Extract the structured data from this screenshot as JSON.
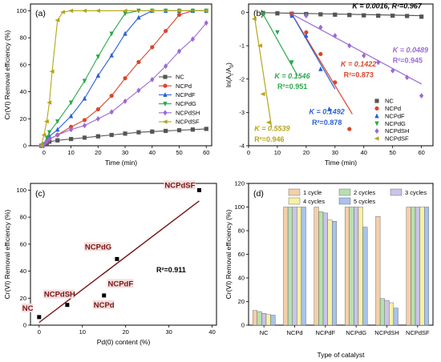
{
  "colors": {
    "NC": "#555555",
    "NCPd": "#d9452b",
    "NCPdF": "#2b5fd9",
    "NCPdG": "#2aa84a",
    "NCPdSH": "#9b6ad6",
    "NCPdSF": "#b5a51a",
    "fit_c": "#7a1414",
    "bar_1": "#f4cfa8",
    "bar_2": "#b7dfb0",
    "bar_3": "#cbc3ea",
    "bar_4": "#f6f2a5",
    "bar_5": "#a9c3ea"
  },
  "chart_data": [
    {
      "panel": "(a)",
      "type": "line",
      "xlabel": "Time (min)",
      "ylabel": "Cr(VI) Removal efficiency (%)",
      "xlim": [
        -5,
        62
      ],
      "ylim": [
        0,
        105
      ],
      "xticks": [
        "0",
        "10",
        "20",
        "30",
        "40",
        "50",
        "60"
      ],
      "yticks": [
        "0",
        "20",
        "40",
        "60",
        "80",
        "100"
      ],
      "legend": "right",
      "series": [
        {
          "name": "NC",
          "marker": "square",
          "x": [
            -1,
            0,
            1,
            2,
            5,
            10,
            15,
            20,
            25,
            30,
            35,
            40,
            45,
            50,
            55,
            60
          ],
          "y": [
            0,
            1,
            2,
            3,
            4,
            5,
            6,
            7,
            8,
            9,
            10,
            10.5,
            11,
            11.5,
            12,
            12.5
          ]
        },
        {
          "name": "NCPd",
          "marker": "circle",
          "x": [
            -1,
            0,
            1,
            2,
            5,
            10,
            15,
            20,
            25,
            30,
            35,
            40,
            45,
            50,
            55,
            60
          ],
          "y": [
            0,
            1,
            3,
            5,
            8,
            14,
            19,
            27,
            37,
            50,
            62,
            73,
            85,
            97,
            100,
            100
          ]
        },
        {
          "name": "NCPdF",
          "marker": "triangle-up",
          "x": [
            -1,
            0,
            1,
            2,
            5,
            10,
            15,
            20,
            25,
            30,
            35,
            40,
            45,
            50,
            55,
            60
          ],
          "y": [
            0,
            1,
            4,
            7,
            12,
            22,
            35,
            52,
            67,
            83,
            95,
            100,
            100,
            100,
            100,
            100
          ]
        },
        {
          "name": "NCPdG",
          "marker": "triangle-down",
          "x": [
            -1,
            0,
            1,
            2,
            5,
            10,
            15,
            20,
            25,
            30,
            35,
            40,
            45,
            50,
            55,
            60
          ],
          "y": [
            0,
            1,
            6,
            10,
            18,
            32,
            48,
            66,
            83,
            98,
            100,
            100,
            100,
            100,
            100,
            100
          ]
        },
        {
          "name": "NCPdSH",
          "marker": "diamond",
          "x": [
            -1,
            0,
            1,
            2,
            5,
            10,
            15,
            20,
            25,
            30,
            35,
            40,
            45,
            50,
            55,
            60
          ],
          "y": [
            0,
            1,
            3,
            5,
            8,
            12,
            15,
            20,
            25,
            33,
            41,
            49,
            59,
            70,
            79,
            91
          ]
        },
        {
          "name": "NCPdSF",
          "marker": "triangle-left",
          "x": [
            -1,
            0,
            1,
            2,
            3,
            5,
            7,
            10,
            15,
            20,
            30,
            40,
            50,
            60
          ],
          "y": [
            0,
            8,
            18,
            32,
            55,
            93,
            99,
            100,
            100,
            100,
            100,
            100,
            100,
            100
          ]
        }
      ]
    },
    {
      "panel": "(b)",
      "type": "scatter",
      "xlabel": "Time (min)",
      "ylabel": "ln(A",
      "ylabel_sub": "t",
      "ylabel_mid": "/A",
      "ylabel_sub2": "0",
      "ylabel_end": ")",
      "xlim": [
        0,
        64
      ],
      "ylim": [
        -4,
        0.25
      ],
      "xticks": [
        "0",
        "10",
        "20",
        "30",
        "40",
        "50",
        "60"
      ],
      "yticks": [
        "0",
        "-1",
        "-2",
        "-3",
        "-4"
      ],
      "legend": "bottom-right",
      "series": [
        {
          "name": "NC",
          "marker": "square",
          "x": [
            5,
            10,
            15,
            20,
            25,
            30,
            35,
            40,
            45,
            50,
            55,
            60
          ],
          "y": [
            -0.02,
            -0.03,
            -0.04,
            -0.05,
            -0.06,
            -0.07,
            -0.08,
            -0.09,
            -0.1,
            -0.1,
            -0.11,
            -0.13
          ],
          "fit": {
            "x": [
              5,
              60
            ],
            "y": [
              -0.01,
              -0.1
            ]
          }
        },
        {
          "name": "NCPd",
          "marker": "circle",
          "x": [
            15,
            20,
            25,
            30,
            35
          ],
          "y": [
            -0.05,
            -0.6,
            -1.25,
            -2.1,
            -3.5
          ],
          "fit": {
            "x": [
              15,
              36
            ],
            "y": [
              -0.05,
              -3.05
            ]
          }
        },
        {
          "name": "NCPdF",
          "marker": "triangle-up",
          "x": [
            15,
            20,
            25,
            28
          ],
          "y": [
            -0.1,
            -0.7,
            -1.7,
            -2.9
          ],
          "fit": {
            "x": [
              15,
              30
            ],
            "y": [
              -0.05,
              -2.3
            ]
          }
        },
        {
          "name": "NCPdG",
          "marker": "triangle-down",
          "x": [
            5,
            10,
            15
          ],
          "y": [
            -0.05,
            -0.6,
            -1.5
          ],
          "fit": {
            "x": [
              5,
              17
            ],
            "y": [
              -0.05,
              -1.9
            ]
          }
        },
        {
          "name": "NCPdSH",
          "marker": "diamond",
          "x": [
            20,
            25,
            30,
            35,
            40,
            45,
            50,
            55,
            60
          ],
          "y": [
            -0.1,
            -0.45,
            -0.7,
            -1.0,
            -1.3,
            -1.5,
            -1.75,
            -1.95,
            -2.5
          ],
          "fit": {
            "x": [
              15,
              60
            ],
            "y": [
              -0.05,
              -2.15
            ]
          }
        },
        {
          "name": "NCPdSF",
          "marker": "triangle-left",
          "x": [
            2,
            4,
            5,
            7
          ],
          "y": [
            -0.2,
            -1.0,
            -2.45,
            -3.3
          ],
          "fit": {
            "x": [
              2,
              8
            ],
            "y": [
              -0.1,
              -3.45
            ]
          }
        }
      ],
      "annotations": [
        {
          "text": "K = 0.0016, R²=0.967",
          "series": "NC",
          "x": 36,
          "y": 0.12
        },
        {
          "text": "K = 0.1422",
          "series": "NCPd",
          "x": 32,
          "y": -1.62
        },
        {
          "text": "R²=0.873",
          "series": "NCPd",
          "x": 33,
          "y": -1.95
        },
        {
          "text": "K = 0.1546",
          "series": "NCPdG",
          "x": 9,
          "y": -1.98
        },
        {
          "text": "R²=0.951",
          "series": "NCPdG",
          "x": 10,
          "y": -2.3
        },
        {
          "text": "K = 0.0489",
          "series": "NCPdSH",
          "x": 50,
          "y": -1.2
        },
        {
          "text": "R²=0.945",
          "series": "NCPdSH",
          "x": 50,
          "y": -1.52
        },
        {
          "text": "K = 0.1492",
          "series": "NCPdF",
          "x": 21,
          "y": -3.05
        },
        {
          "text": "R²=0.878",
          "series": "NCPdF",
          "x": 22,
          "y": -3.38
        },
        {
          "text": "K = 0.5539",
          "series": "NCPdSF",
          "x": 2,
          "y": -3.55
        },
        {
          "text": "R²=0.946",
          "series": "NCPdSF",
          "x": 2,
          "y": -3.88
        }
      ]
    },
    {
      "panel": "(c)",
      "type": "scatter",
      "xlabel": "Pd(0) content (%)",
      "ylabel": "Cr(VI) Removal efficiency (%)",
      "xlim": [
        -2,
        41
      ],
      "ylim": [
        0,
        105
      ],
      "xticks": [
        "0",
        "10",
        "20",
        "30",
        "40"
      ],
      "yticks": [
        "0",
        "20",
        "40",
        "60",
        "80",
        "100"
      ],
      "points": [
        {
          "label": "NC",
          "x": 0,
          "y": 6
        },
        {
          "label": "NCPdSH",
          "x": 6.5,
          "y": 15
        },
        {
          "label": "NCPd",
          "x": 15,
          "y": 22
        },
        {
          "label": "NCPdF",
          "x": 17,
          "y": 30
        },
        {
          "label": "NCPdG",
          "x": 18,
          "y": 49
        },
        {
          "label": "NCPdSF",
          "x": 37,
          "y": 100
        }
      ],
      "fit": {
        "x": [
          0,
          37
        ],
        "y": [
          2,
          92
        ]
      },
      "r2": "R²=0.911"
    },
    {
      "panel": "(d)",
      "type": "bar",
      "xlabel": "Type of catalyst",
      "ylabel": "Cr(VI) Removal efficiency (%)",
      "ylim": [
        0,
        120
      ],
      "yticks": [
        "0",
        "20",
        "40",
        "60",
        "80",
        "100",
        "120"
      ],
      "legend": "top",
      "categories": [
        "NC",
        "NCPd",
        "NCPdF",
        "NCPdG",
        "NCPdSH",
        "NCPdSF"
      ],
      "series": [
        {
          "name": "1 cycle",
          "values": [
            12.5,
            100,
            100,
            100,
            92,
            100
          ]
        },
        {
          "name": "2 cycles",
          "values": [
            11.5,
            100,
            96,
            100,
            22.5,
            100
          ]
        },
        {
          "name": "3 cycles",
          "values": [
            10,
            100,
            95,
            100,
            21,
            100
          ]
        },
        {
          "name": "4 cycles",
          "values": [
            9,
            100,
            89,
            100,
            19,
            100
          ]
        },
        {
          "name": "5 cycles",
          "values": [
            8.5,
            100,
            88,
            83,
            14.5,
            100
          ]
        }
      ]
    }
  ]
}
